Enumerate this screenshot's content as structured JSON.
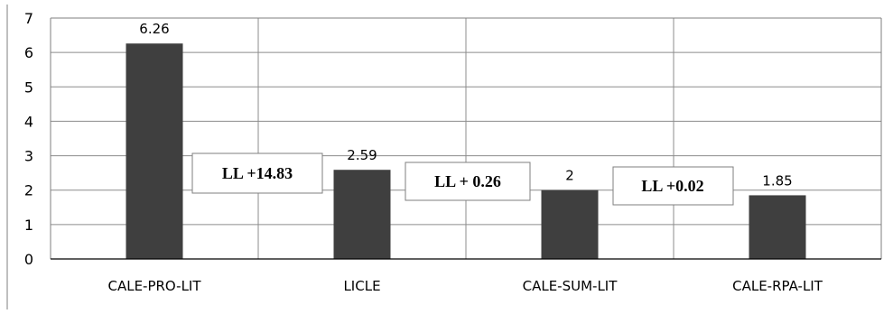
{
  "chart_data": {
    "type": "bar",
    "title": "",
    "xlabel": "",
    "ylabel": "",
    "categories": [
      "CALE-PRO-LIT",
      "LICLE",
      "CALE-SUM-LIT",
      "CALE-RPA-LIT"
    ],
    "values": [
      6.26,
      2.59,
      2,
      1.85
    ],
    "data_labels": [
      "6.26",
      "2.59",
      "2",
      "1.85"
    ],
    "ylim": [
      0,
      7
    ],
    "yticks": [
      0,
      1,
      2,
      3,
      4,
      5,
      6,
      7
    ],
    "grid": "both",
    "legend": "none",
    "bar_color": "#3f3f3f",
    "annotations": [
      "LL +14.83",
      "LL + 0.26",
      "LL +0.02"
    ]
  }
}
